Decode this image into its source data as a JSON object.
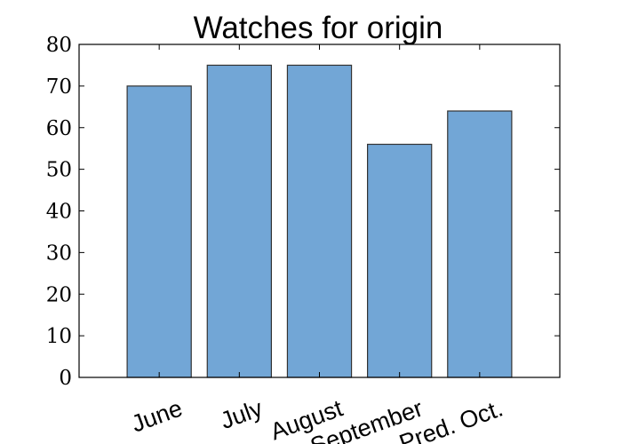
{
  "chart_data": {
    "type": "bar",
    "title": "Watches for origin",
    "categories": [
      "June",
      "July",
      "August",
      "September",
      "Pred. Oct."
    ],
    "values": [
      70,
      75,
      75,
      56,
      64
    ],
    "ylim": [
      0,
      80
    ],
    "yticks": [
      "0",
      "10",
      "20",
      "30",
      "40",
      "50",
      "60",
      "70",
      "80"
    ],
    "xlabel": "",
    "ylabel": "",
    "grid": false,
    "legend": "none",
    "bar_color": "#72a6d6",
    "bar_edge_color": "#333333"
  }
}
